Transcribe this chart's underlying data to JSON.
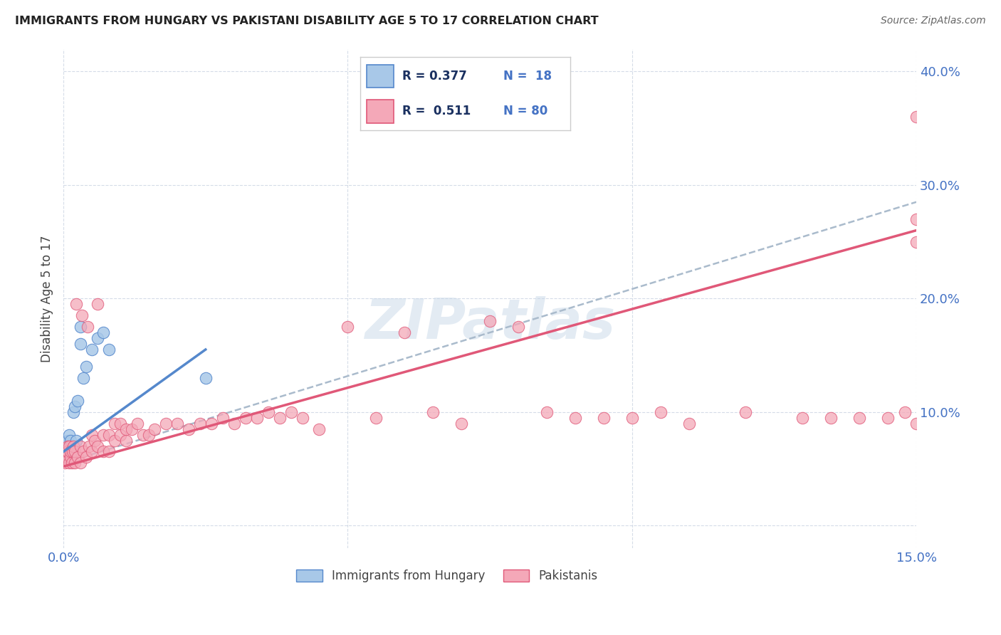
{
  "title": "IMMIGRANTS FROM HUNGARY VS PAKISTANI DISABILITY AGE 5 TO 17 CORRELATION CHART",
  "source": "Source: ZipAtlas.com",
  "ylabel": "Disability Age 5 to 17",
  "xlim": [
    0.0,
    0.15
  ],
  "ylim": [
    -0.02,
    0.42
  ],
  "hungary_color": "#a8c8e8",
  "pakistan_color": "#f4a8b8",
  "hungary_line_color": "#5588cc",
  "pakistan_line_color": "#e05878",
  "dashed_line_color": "#aabbcc",
  "watermark": "ZIPatlas",
  "hungary_x": [
    0.0005,
    0.0008,
    0.001,
    0.0012,
    0.0015,
    0.0018,
    0.002,
    0.0022,
    0.0025,
    0.003,
    0.003,
    0.0035,
    0.004,
    0.005,
    0.006,
    0.007,
    0.008,
    0.025
  ],
  "hungary_y": [
    0.06,
    0.075,
    0.08,
    0.075,
    0.065,
    0.1,
    0.105,
    0.075,
    0.11,
    0.16,
    0.175,
    0.13,
    0.14,
    0.155,
    0.165,
    0.17,
    0.155,
    0.13
  ],
  "pakistan_x": [
    0.0003,
    0.0005,
    0.0006,
    0.0007,
    0.0008,
    0.001,
    0.001,
    0.0012,
    0.0013,
    0.0015,
    0.0016,
    0.0018,
    0.002,
    0.002,
    0.0022,
    0.0025,
    0.003,
    0.003,
    0.0032,
    0.0035,
    0.004,
    0.0042,
    0.0045,
    0.005,
    0.005,
    0.0055,
    0.006,
    0.006,
    0.007,
    0.007,
    0.008,
    0.008,
    0.009,
    0.009,
    0.01,
    0.01,
    0.011,
    0.011,
    0.012,
    0.013,
    0.014,
    0.015,
    0.016,
    0.018,
    0.02,
    0.022,
    0.024,
    0.026,
    0.028,
    0.03,
    0.032,
    0.034,
    0.036,
    0.038,
    0.04,
    0.042,
    0.045,
    0.05,
    0.055,
    0.06,
    0.065,
    0.07,
    0.075,
    0.08,
    0.085,
    0.09,
    0.095,
    0.1,
    0.105,
    0.11,
    0.12,
    0.13,
    0.135,
    0.14,
    0.145,
    0.148,
    0.15,
    0.15,
    0.15,
    0.15
  ],
  "pakistan_y": [
    0.055,
    0.06,
    0.065,
    0.07,
    0.065,
    0.055,
    0.07,
    0.06,
    0.065,
    0.055,
    0.065,
    0.07,
    0.055,
    0.065,
    0.195,
    0.06,
    0.055,
    0.07,
    0.185,
    0.065,
    0.06,
    0.175,
    0.07,
    0.065,
    0.08,
    0.075,
    0.07,
    0.195,
    0.065,
    0.08,
    0.065,
    0.08,
    0.075,
    0.09,
    0.08,
    0.09,
    0.075,
    0.085,
    0.085,
    0.09,
    0.08,
    0.08,
    0.085,
    0.09,
    0.09,
    0.085,
    0.09,
    0.09,
    0.095,
    0.09,
    0.095,
    0.095,
    0.1,
    0.095,
    0.1,
    0.095,
    0.085,
    0.175,
    0.095,
    0.17,
    0.1,
    0.09,
    0.18,
    0.175,
    0.1,
    0.095,
    0.095,
    0.095,
    0.1,
    0.09,
    0.1,
    0.095,
    0.095,
    0.095,
    0.095,
    0.1,
    0.09,
    0.25,
    0.27,
    0.36
  ],
  "hungary_line_x0": 0.0,
  "hungary_line_x1": 0.025,
  "hungary_line_y0": 0.065,
  "hungary_line_y1": 0.155,
  "dash_line_x0": 0.0,
  "dash_line_x1": 0.15,
  "dash_line_y0": 0.055,
  "dash_line_y1": 0.285,
  "pakistan_line_x0": 0.0,
  "pakistan_line_x1": 0.15,
  "pakistan_line_y0": 0.052,
  "pakistan_line_y1": 0.26
}
